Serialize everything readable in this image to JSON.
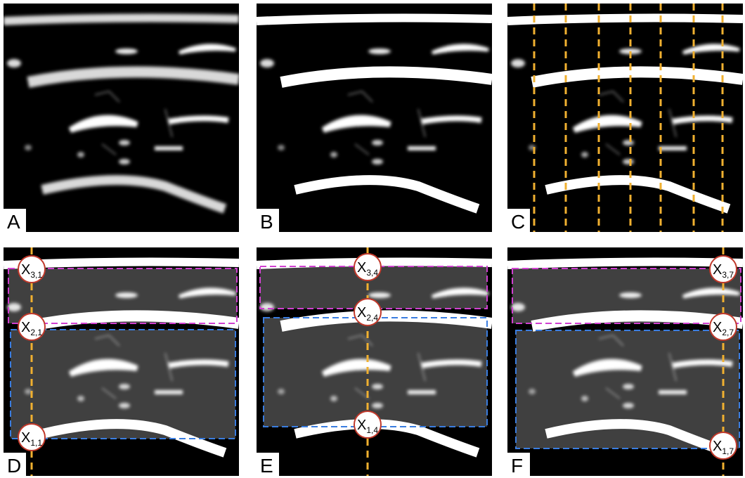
{
  "panels": [
    {
      "label": "A"
    },
    {
      "label": "B"
    },
    {
      "label": "C"
    },
    {
      "label": "D",
      "markers": [
        {
          "base": "X",
          "sub": "3,1"
        },
        {
          "base": "X",
          "sub": "2,1"
        },
        {
          "base": "X",
          "sub": "1,1"
        }
      ]
    },
    {
      "label": "E",
      "markers": [
        {
          "base": "X",
          "sub": "3,4"
        },
        {
          "base": "X",
          "sub": "2,4"
        },
        {
          "base": "X",
          "sub": "1,4"
        }
      ]
    },
    {
      "label": "F",
      "markers": [
        {
          "base": "X",
          "sub": "3,7"
        },
        {
          "base": "X",
          "sub": "2,7"
        },
        {
          "base": "X",
          "sub": "1,7"
        }
      ]
    }
  ]
}
